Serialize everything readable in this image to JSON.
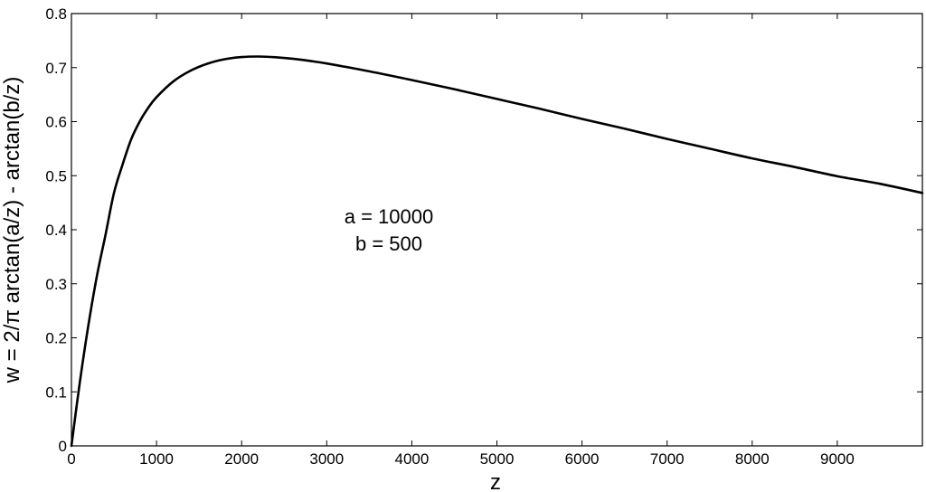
{
  "chart_data": {
    "type": "line",
    "title": "",
    "xlabel": "z",
    "ylabel": "w = 2/π arctan(a/z) - arctan(b/z)",
    "xlim": [
      0,
      10000
    ],
    "ylim": [
      0,
      0.8
    ],
    "x_ticks": [
      0,
      1000,
      2000,
      3000,
      4000,
      5000,
      6000,
      7000,
      8000,
      9000
    ],
    "x_tick_labels": [
      "0",
      "1000",
      "2000",
      "3000",
      "4000",
      "5000",
      "6000",
      "7000",
      "8000",
      "9000"
    ],
    "y_ticks": [
      0,
      0.1,
      0.2,
      0.3,
      0.4,
      0.5,
      0.6,
      0.7,
      0.8
    ],
    "y_tick_labels": [
      "0",
      "0.1",
      "0.2",
      "0.3",
      "0.4",
      "0.5",
      "0.6",
      "0.7",
      "0.8"
    ],
    "grid": false,
    "legend": "none",
    "line_color": "#000000",
    "annotations": [
      "a = 10000",
      "b = 500"
    ],
    "series": [
      {
        "values": [
          {
            "x": 0,
            "y": 0.0
          },
          {
            "x": 100,
            "y": 0.1193
          },
          {
            "x": 200,
            "y": 0.2241
          },
          {
            "x": 300,
            "y": 0.3149
          },
          {
            "x": 400,
            "y": 0.3902
          },
          {
            "x": 500,
            "y": 0.4682
          },
          {
            "x": 600,
            "y": 0.5201
          },
          {
            "x": 700,
            "y": 0.5665
          },
          {
            "x": 800,
            "y": 0.5996
          },
          {
            "x": 900,
            "y": 0.6251
          },
          {
            "x": 1000,
            "y": 0.6453
          },
          {
            "x": 1200,
            "y": 0.6748
          },
          {
            "x": 1400,
            "y": 0.6944
          },
          {
            "x": 1600,
            "y": 0.7074
          },
          {
            "x": 1800,
            "y": 0.7155
          },
          {
            "x": 2000,
            "y": 0.7195
          },
          {
            "x": 2200,
            "y": 0.7205
          },
          {
            "x": 2400,
            "y": 0.7192
          },
          {
            "x": 2600,
            "y": 0.7164
          },
          {
            "x": 2800,
            "y": 0.7124
          },
          {
            "x": 3000,
            "y": 0.7076
          },
          {
            "x": 3500,
            "y": 0.6931
          },
          {
            "x": 4000,
            "y": 0.677
          },
          {
            "x": 4500,
            "y": 0.66
          },
          {
            "x": 5000,
            "y": 0.642
          },
          {
            "x": 5500,
            "y": 0.624
          },
          {
            "x": 6000,
            "y": 0.605
          },
          {
            "x": 6500,
            "y": 0.587
          },
          {
            "x": 7000,
            "y": 0.568
          },
          {
            "x": 7500,
            "y": 0.55
          },
          {
            "x": 8000,
            "y": 0.532
          },
          {
            "x": 8500,
            "y": 0.516
          },
          {
            "x": 9000,
            "y": 0.499
          },
          {
            "x": 9500,
            "y": 0.485
          },
          {
            "x": 10000,
            "y": 0.468
          }
        ]
      }
    ]
  }
}
